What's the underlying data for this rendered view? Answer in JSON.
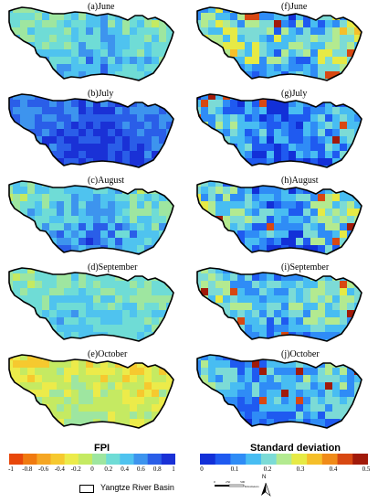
{
  "panels": [
    {
      "label": "(a)June",
      "type": "fpi",
      "base": 0.35,
      "amp": 0.3,
      "seed": 11
    },
    {
      "label": "(f)June",
      "type": "sd",
      "base": 0.18,
      "amp": 0.14,
      "seed": 21
    },
    {
      "label": "(b)July",
      "type": "fpi",
      "base": 0.78,
      "amp": 0.22,
      "seed": 12
    },
    {
      "label": "(g)July",
      "type": "sd",
      "base": 0.1,
      "amp": 0.12,
      "seed": 22
    },
    {
      "label": "(c)August",
      "type": "fpi",
      "base": 0.4,
      "amp": 0.35,
      "seed": 13
    },
    {
      "label": "(h)August",
      "type": "sd",
      "base": 0.14,
      "amp": 0.14,
      "seed": 23
    },
    {
      "label": "(d)September",
      "type": "fpi",
      "base": 0.25,
      "amp": 0.25,
      "seed": 14
    },
    {
      "label": "(i)September",
      "type": "sd",
      "base": 0.16,
      "amp": 0.1,
      "seed": 24
    },
    {
      "label": "(e)October",
      "type": "fpi",
      "base": -0.15,
      "amp": 0.25,
      "seed": 15
    },
    {
      "label": "(j)October",
      "type": "sd",
      "base": 0.13,
      "amp": 0.1,
      "seed": 25
    }
  ],
  "fpi_colorbar": {
    "title": "FPI",
    "ticks": [
      "-1",
      "-0.8",
      "-0.6",
      "-0.4",
      "-0.2",
      "0",
      "0.2",
      "0.4",
      "0.6",
      "0.8",
      "1"
    ],
    "colors": [
      "#e8470a",
      "#f07a10",
      "#f5a623",
      "#f6c92f",
      "#eceb4a",
      "#c5ea62",
      "#9ee6a0",
      "#6fdcd6",
      "#4fc3ef",
      "#3d94ee",
      "#2a5ee8",
      "#1a31d6"
    ]
  },
  "sd_colorbar": {
    "title": "Standard deviation",
    "ticks": [
      "0",
      "0.1",
      "0.2",
      "0.3",
      "0.4",
      "0.5"
    ],
    "colors": [
      "#1230d8",
      "#1f5af0",
      "#2f8cf6",
      "#48bdf2",
      "#7cdbd6",
      "#b3ea90",
      "#e6ea45",
      "#f5bf2a",
      "#f08b18",
      "#d84812",
      "#a11a0a"
    ]
  },
  "legend": {
    "label": "Yangtze River Basin"
  },
  "scalebar": {
    "ticks": [
      "0",
      "250",
      "500"
    ],
    "unit": "Kilometers"
  },
  "north": "N"
}
